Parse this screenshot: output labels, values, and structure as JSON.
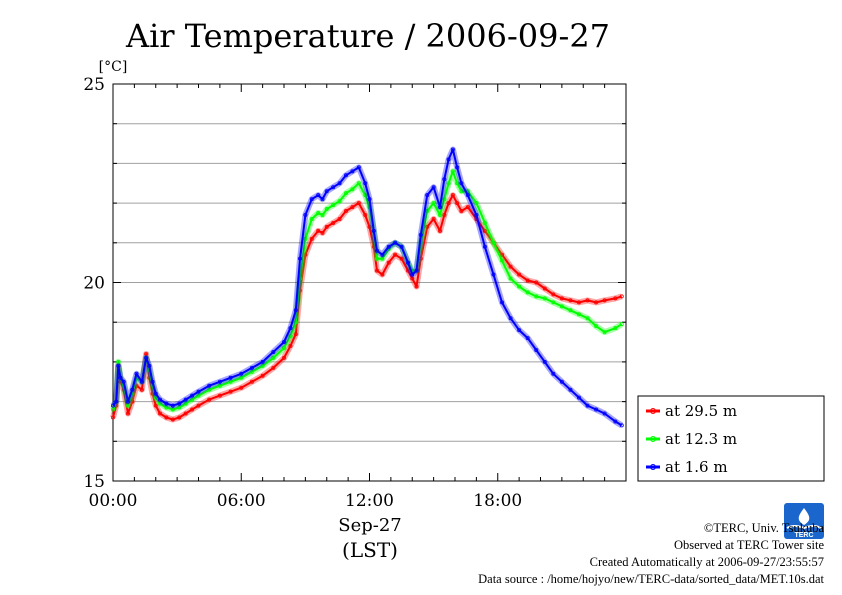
{
  "chart_data": {
    "type": "line",
    "title": "Air Temperature / 2006-09-27",
    "ylabel": "[°C]",
    "xlabel": "Sep-27",
    "xlabel2": "(LST)",
    "xlim": [
      0,
      24
    ],
    "ylim": [
      15,
      25
    ],
    "xticks": [
      {
        "v": 0,
        "label": "00:00"
      },
      {
        "v": 6,
        "label": "06:00"
      },
      {
        "v": 12,
        "label": "12:00"
      },
      {
        "v": 18,
        "label": "18:00"
      }
    ],
    "yticks": [
      {
        "v": 15,
        "label": "15"
      },
      {
        "v": 20,
        "label": "20"
      },
      {
        "v": 25,
        "label": "25"
      }
    ],
    "grid": "horizontal",
    "legend_position": "bottom-right",
    "series": [
      {
        "name": "at 29.5 m",
        "color": "#ff0000",
        "x": [
          0,
          0.15,
          0.25,
          0.35,
          0.5,
          0.7,
          0.9,
          1.1,
          1.35,
          1.55,
          1.7,
          1.85,
          2.0,
          2.2,
          2.5,
          2.8,
          3.1,
          3.4,
          3.7,
          4.0,
          4.5,
          5.0,
          5.5,
          6.0,
          6.5,
          7.0,
          7.5,
          8.0,
          8.3,
          8.55,
          8.75,
          9.0,
          9.3,
          9.6,
          9.8,
          10.0,
          10.3,
          10.6,
          10.9,
          11.2,
          11.5,
          11.8,
          12.0,
          12.2,
          12.35,
          12.6,
          12.9,
          13.2,
          13.5,
          13.8,
          14.0,
          14.2,
          14.4,
          14.7,
          15.0,
          15.3,
          15.5,
          15.7,
          15.9,
          16.1,
          16.3,
          16.6,
          17.0,
          17.4,
          17.8,
          18.2,
          18.6,
          19.0,
          19.4,
          19.8,
          20.2,
          20.6,
          21.0,
          21.4,
          21.8,
          22.2,
          22.6,
          23.0,
          23.5,
          23.8
        ],
        "y": [
          16.6,
          16.9,
          17.9,
          17.5,
          17.3,
          16.7,
          17.0,
          17.4,
          17.3,
          18.2,
          17.6,
          17.2,
          16.9,
          16.7,
          16.6,
          16.55,
          16.6,
          16.7,
          16.8,
          16.9,
          17.05,
          17.15,
          17.25,
          17.35,
          17.5,
          17.65,
          17.85,
          18.1,
          18.4,
          18.7,
          19.8,
          20.7,
          21.1,
          21.3,
          21.25,
          21.4,
          21.5,
          21.6,
          21.8,
          21.9,
          22.0,
          21.7,
          21.4,
          20.9,
          20.3,
          20.2,
          20.5,
          20.7,
          20.6,
          20.3,
          20.1,
          19.9,
          20.6,
          21.4,
          21.6,
          21.3,
          21.7,
          22.0,
          22.2,
          22.0,
          21.8,
          21.9,
          21.6,
          21.3,
          21.0,
          20.7,
          20.4,
          20.2,
          20.05,
          20.0,
          19.85,
          19.7,
          19.6,
          19.55,
          19.5,
          19.55,
          19.5,
          19.55,
          19.6,
          19.65
        ]
      },
      {
        "name": "at 12.3 m",
        "color": "#00ff00",
        "x": [
          0,
          0.15,
          0.25,
          0.35,
          0.5,
          0.7,
          0.9,
          1.1,
          1.35,
          1.55,
          1.7,
          1.85,
          2.0,
          2.2,
          2.5,
          2.8,
          3.1,
          3.4,
          3.7,
          4.0,
          4.5,
          5.0,
          5.5,
          6.0,
          6.5,
          7.0,
          7.5,
          8.0,
          8.3,
          8.55,
          8.75,
          9.0,
          9.3,
          9.6,
          9.8,
          10.0,
          10.3,
          10.6,
          10.9,
          11.2,
          11.5,
          11.8,
          12.0,
          12.2,
          12.35,
          12.6,
          12.9,
          13.2,
          13.5,
          13.8,
          14.0,
          14.2,
          14.4,
          14.7,
          15.0,
          15.3,
          15.5,
          15.7,
          15.9,
          16.1,
          16.3,
          16.6,
          17.0,
          17.4,
          17.8,
          18.2,
          18.6,
          19.0,
          19.4,
          19.8,
          20.2,
          20.6,
          21.0,
          21.4,
          21.8,
          22.2,
          22.6,
          23.0,
          23.5,
          23.8
        ],
        "y": [
          16.8,
          17.0,
          18.0,
          17.6,
          17.4,
          16.9,
          17.2,
          17.6,
          17.5,
          18.1,
          17.8,
          17.4,
          17.1,
          16.95,
          16.85,
          16.8,
          16.85,
          16.95,
          17.05,
          17.15,
          17.3,
          17.4,
          17.5,
          17.6,
          17.75,
          17.9,
          18.1,
          18.35,
          18.65,
          19.0,
          20.1,
          21.1,
          21.6,
          21.75,
          21.7,
          21.85,
          21.95,
          22.05,
          22.25,
          22.35,
          22.5,
          22.2,
          21.9,
          21.3,
          20.6,
          20.6,
          20.85,
          21.0,
          20.9,
          20.5,
          20.3,
          20.3,
          21.0,
          21.8,
          22.0,
          21.7,
          22.1,
          22.5,
          22.8,
          22.5,
          22.3,
          22.3,
          22.0,
          21.5,
          21.0,
          20.55,
          20.1,
          19.9,
          19.75,
          19.65,
          19.6,
          19.5,
          19.4,
          19.3,
          19.2,
          19.1,
          18.9,
          18.75,
          18.85,
          18.95
        ]
      },
      {
        "name": "at 1.6 m",
        "color": "#0000ff",
        "x": [
          0,
          0.15,
          0.25,
          0.35,
          0.5,
          0.7,
          0.9,
          1.1,
          1.35,
          1.55,
          1.7,
          1.85,
          2.0,
          2.2,
          2.5,
          2.8,
          3.1,
          3.4,
          3.7,
          4.0,
          4.5,
          5.0,
          5.5,
          6.0,
          6.5,
          7.0,
          7.5,
          8.0,
          8.3,
          8.55,
          8.75,
          9.0,
          9.3,
          9.6,
          9.8,
          10.0,
          10.3,
          10.6,
          10.9,
          11.2,
          11.5,
          11.8,
          12.0,
          12.2,
          12.35,
          12.6,
          12.9,
          13.2,
          13.5,
          13.8,
          14.0,
          14.2,
          14.4,
          14.7,
          15.0,
          15.3,
          15.5,
          15.7,
          15.9,
          16.1,
          16.3,
          16.6,
          17.0,
          17.4,
          17.8,
          18.2,
          18.6,
          19.0,
          19.4,
          19.8,
          20.2,
          20.6,
          21.0,
          21.4,
          21.8,
          22.2,
          22.6,
          23.0,
          23.5,
          23.8
        ],
        "y": [
          16.9,
          17.0,
          17.9,
          17.6,
          17.5,
          17.0,
          17.3,
          17.7,
          17.5,
          18.1,
          17.9,
          17.5,
          17.2,
          17.05,
          16.95,
          16.9,
          16.95,
          17.05,
          17.15,
          17.25,
          17.4,
          17.5,
          17.6,
          17.7,
          17.85,
          18.0,
          18.25,
          18.5,
          18.85,
          19.3,
          20.6,
          21.7,
          22.1,
          22.2,
          22.1,
          22.3,
          22.4,
          22.5,
          22.7,
          22.8,
          22.9,
          22.5,
          22.1,
          21.3,
          20.8,
          20.7,
          20.9,
          21.0,
          20.9,
          20.5,
          20.2,
          20.3,
          21.2,
          22.2,
          22.4,
          21.9,
          22.6,
          23.1,
          23.35,
          22.9,
          22.5,
          22.2,
          21.7,
          20.9,
          20.2,
          19.5,
          19.1,
          18.8,
          18.6,
          18.3,
          18.0,
          17.7,
          17.5,
          17.3,
          17.1,
          16.9,
          16.8,
          16.7,
          16.5,
          16.4
        ]
      }
    ]
  },
  "footer": {
    "copyright": "©TERC, Univ. Tsukuba",
    "observed": "Observed at TERC Tower site",
    "created": "Created Automatically at 2006-09-27/23:55:57",
    "source": "Data source : /home/hojyo/new/TERC-data/sorted_data/MET.10s.dat"
  },
  "logo": {
    "text": "TERC"
  }
}
